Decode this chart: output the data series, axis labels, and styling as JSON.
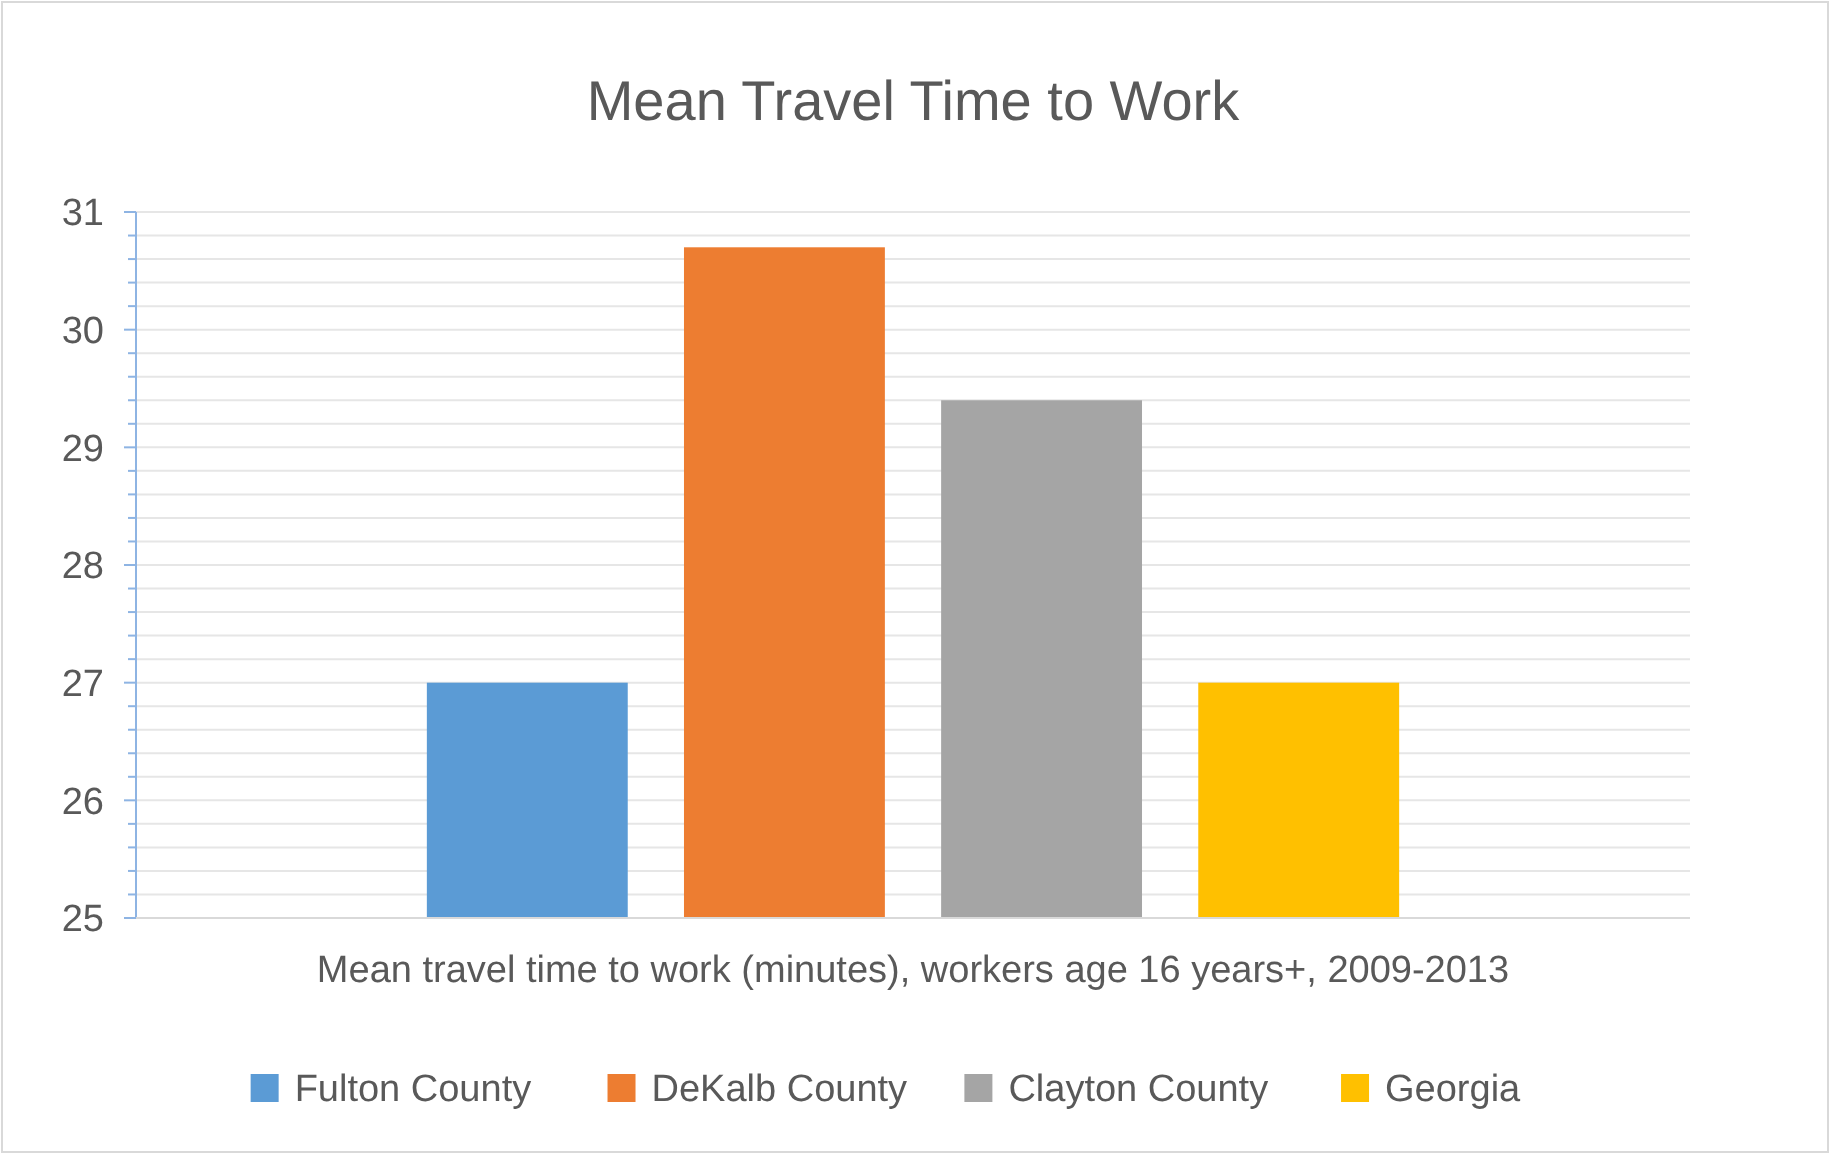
{
  "chart_data": {
    "type": "bar",
    "title": "Mean Travel Time to Work",
    "categories": [
      "Mean travel time to work (minutes), workers age 16 years+, 2009-2013"
    ],
    "series": [
      {
        "name": "Fulton County",
        "color": "#5b9bd5",
        "values": [
          27.0
        ]
      },
      {
        "name": "DeKalb County",
        "color": "#ed7d31",
        "values": [
          30.7
        ]
      },
      {
        "name": "Clayton County",
        "color": "#a5a5a5",
        "values": [
          29.4
        ]
      },
      {
        "name": "Georgia",
        "color": "#ffc000",
        "values": [
          27.0
        ]
      }
    ],
    "ylim": [
      25,
      31
    ],
    "yticks": [
      25,
      {
        "value": 25.2,
        "label": null
      },
      {
        "value": 25.4,
        "label": null
      },
      {
        "value": 25.6,
        "label": null
      },
      {
        "value": 25.8,
        "label": null
      },
      26,
      {
        "value": 26.2,
        "label": null
      },
      {
        "value": 26.4,
        "label": null
      },
      {
        "value": 26.6,
        "label": null
      },
      {
        "value": 26.8,
        "label": null
      },
      27,
      {
        "value": 27.2,
        "label": null
      },
      {
        "value": 27.4,
        "label": null
      },
      {
        "value": 27.6,
        "label": null
      },
      {
        "value": 27.8,
        "label": null
      },
      28,
      {
        "value": 28.2,
        "label": null
      },
      {
        "value": 28.4,
        "label": null
      },
      {
        "value": 28.6,
        "label": null
      },
      {
        "value": 28.8,
        "label": null
      },
      29,
      {
        "value": 29.2,
        "label": null
      },
      {
        "value": 29.4,
        "label": null
      },
      {
        "value": 29.6,
        "label": null
      },
      {
        "value": 29.8,
        "label": null
      },
      30,
      {
        "value": 30.2,
        "label": null
      },
      {
        "value": 30.4,
        "label": null
      },
      {
        "value": 30.6,
        "label": null
      },
      {
        "value": 30.8,
        "label": null
      },
      31
    ],
    "grid": "y",
    "legend": "bottom"
  }
}
